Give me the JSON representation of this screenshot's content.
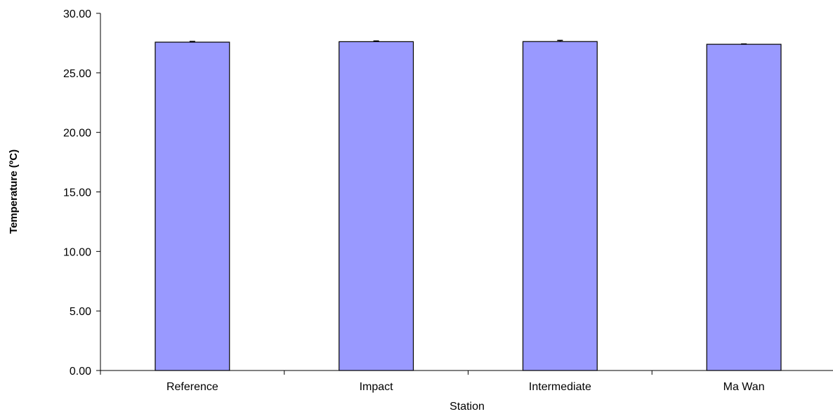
{
  "chart_data": {
    "type": "bar",
    "title": "",
    "xlabel": "Station",
    "ylabel": "Temperature (ºC)",
    "categories": [
      "Reference",
      "Impact",
      "Intermediate",
      "Ma Wan"
    ],
    "values": [
      27.58,
      27.62,
      27.63,
      27.4
    ],
    "error": [
      0.06,
      0.06,
      0.1,
      0.03
    ],
    "ylim": [
      0,
      30
    ],
    "yticks": [
      "0.00",
      "5.00",
      "10.00",
      "15.00",
      "20.00",
      "25.00",
      "30.00"
    ],
    "grid": false,
    "legend": "none",
    "bar_color": "#9999ff"
  }
}
